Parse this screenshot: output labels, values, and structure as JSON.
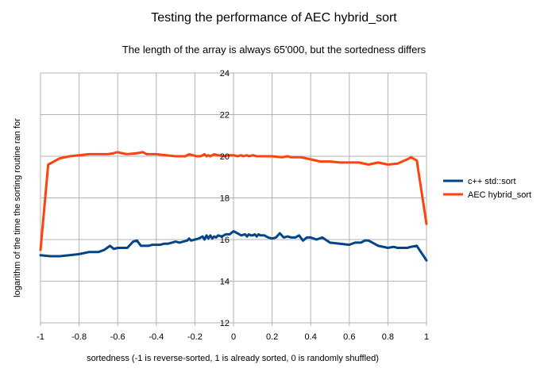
{
  "chart_data": {
    "type": "line",
    "title": "Testing the performance of AEC hybrid_sort",
    "subtitle": "The length of the array is always 65'000, but the sortedness differs",
    "xlabel": "sortedness (-1 is reverse-sorted, 1 is already sorted, 0 is randomly shuffled)",
    "ylabel": "logarithm of the time the sorting routine ran for",
    "xlim": [
      -1,
      1
    ],
    "ylim": [
      12,
      24
    ],
    "xticks": [
      "-1",
      "-0.8",
      "-0.6",
      "-0.4",
      "-0.2",
      "0",
      "0.2",
      "0.4",
      "0.6",
      "0.8",
      "1"
    ],
    "yticks": [
      "12",
      "14",
      "16",
      "18",
      "20",
      "22",
      "24"
    ],
    "grid": true,
    "legend_position": "right",
    "series": [
      {
        "name": "c++ std::sort",
        "color": "#004586",
        "x": [
          -1,
          -0.95,
          -0.9,
          -0.85,
          -0.8,
          -0.75,
          -0.7,
          -0.67,
          -0.64,
          -0.62,
          -0.6,
          -0.58,
          -0.55,
          -0.52,
          -0.5,
          -0.48,
          -0.46,
          -0.44,
          -0.42,
          -0.4,
          -0.38,
          -0.36,
          -0.34,
          -0.32,
          -0.3,
          -0.28,
          -0.26,
          -0.24,
          -0.23,
          -0.22,
          -0.2,
          -0.18,
          -0.16,
          -0.15,
          -0.14,
          -0.13,
          -0.12,
          -0.11,
          -0.1,
          -0.09,
          -0.08,
          -0.06,
          -0.04,
          -0.02,
          0,
          0.02,
          0.04,
          0.06,
          0.07,
          0.08,
          0.09,
          0.1,
          0.11,
          0.12,
          0.13,
          0.14,
          0.16,
          0.18,
          0.2,
          0.22,
          0.24,
          0.26,
          0.28,
          0.3,
          0.32,
          0.34,
          0.36,
          0.38,
          0.4,
          0.43,
          0.46,
          0.5,
          0.55,
          0.6,
          0.63,
          0.66,
          0.68,
          0.7,
          0.72,
          0.75,
          0.8,
          0.83,
          0.85,
          0.88,
          0.9,
          0.92,
          0.95,
          1
        ],
        "y": [
          15.25,
          15.2,
          15.2,
          15.25,
          15.3,
          15.4,
          15.4,
          15.5,
          15.7,
          15.55,
          15.6,
          15.6,
          15.6,
          15.9,
          15.95,
          15.7,
          15.7,
          15.7,
          15.75,
          15.75,
          15.75,
          15.8,
          15.8,
          15.85,
          15.9,
          15.85,
          15.9,
          15.95,
          16.05,
          15.95,
          16.0,
          16.05,
          16.15,
          16.0,
          16.2,
          16.05,
          16.2,
          16.05,
          16.15,
          16.1,
          16.2,
          16.15,
          16.25,
          16.25,
          16.4,
          16.3,
          16.2,
          16.25,
          16.15,
          16.25,
          16.2,
          16.2,
          16.25,
          16.15,
          16.25,
          16.2,
          16.2,
          16.1,
          16.05,
          16.1,
          16.3,
          16.1,
          16.15,
          16.1,
          16.1,
          16.2,
          15.95,
          16.1,
          16.1,
          16.0,
          16.1,
          15.85,
          15.8,
          15.75,
          15.85,
          15.85,
          15.95,
          15.95,
          15.85,
          15.7,
          15.6,
          15.65,
          15.6,
          15.6,
          15.6,
          15.65,
          15.7,
          15.0
        ]
      },
      {
        "name": "AEC hybrid_sort",
        "color": "#ff420e",
        "x": [
          -1,
          -0.96,
          -0.93,
          -0.9,
          -0.85,
          -0.8,
          -0.75,
          -0.7,
          -0.65,
          -0.62,
          -0.6,
          -0.58,
          -0.55,
          -0.5,
          -0.47,
          -0.45,
          -0.4,
          -0.35,
          -0.3,
          -0.25,
          -0.23,
          -0.21,
          -0.19,
          -0.17,
          -0.15,
          -0.14,
          -0.13,
          -0.12,
          -0.1,
          -0.08,
          -0.05,
          -0.02,
          0,
          0.02,
          0.04,
          0.05,
          0.07,
          0.08,
          0.1,
          0.12,
          0.15,
          0.2,
          0.25,
          0.28,
          0.3,
          0.35,
          0.4,
          0.45,
          0.5,
          0.55,
          0.6,
          0.65,
          0.7,
          0.75,
          0.8,
          0.85,
          0.9,
          0.92,
          0.95,
          1
        ],
        "y": [
          15.5,
          19.6,
          19.75,
          19.9,
          20.0,
          20.05,
          20.1,
          20.1,
          20.1,
          20.15,
          20.2,
          20.15,
          20.1,
          20.15,
          20.2,
          20.1,
          20.1,
          20.05,
          20.0,
          20.0,
          20.1,
          20.05,
          20.0,
          20.0,
          20.1,
          20.0,
          20.05,
          20.0,
          20.1,
          20.05,
          20.0,
          20.05,
          20.05,
          20.0,
          20.05,
          20.0,
          20.05,
          20.0,
          20.05,
          20.0,
          20.0,
          20.0,
          19.95,
          20.0,
          19.95,
          19.95,
          19.85,
          19.75,
          19.75,
          19.7,
          19.7,
          19.7,
          19.6,
          19.7,
          19.6,
          19.65,
          19.85,
          19.95,
          19.8,
          16.75
        ]
      }
    ]
  }
}
